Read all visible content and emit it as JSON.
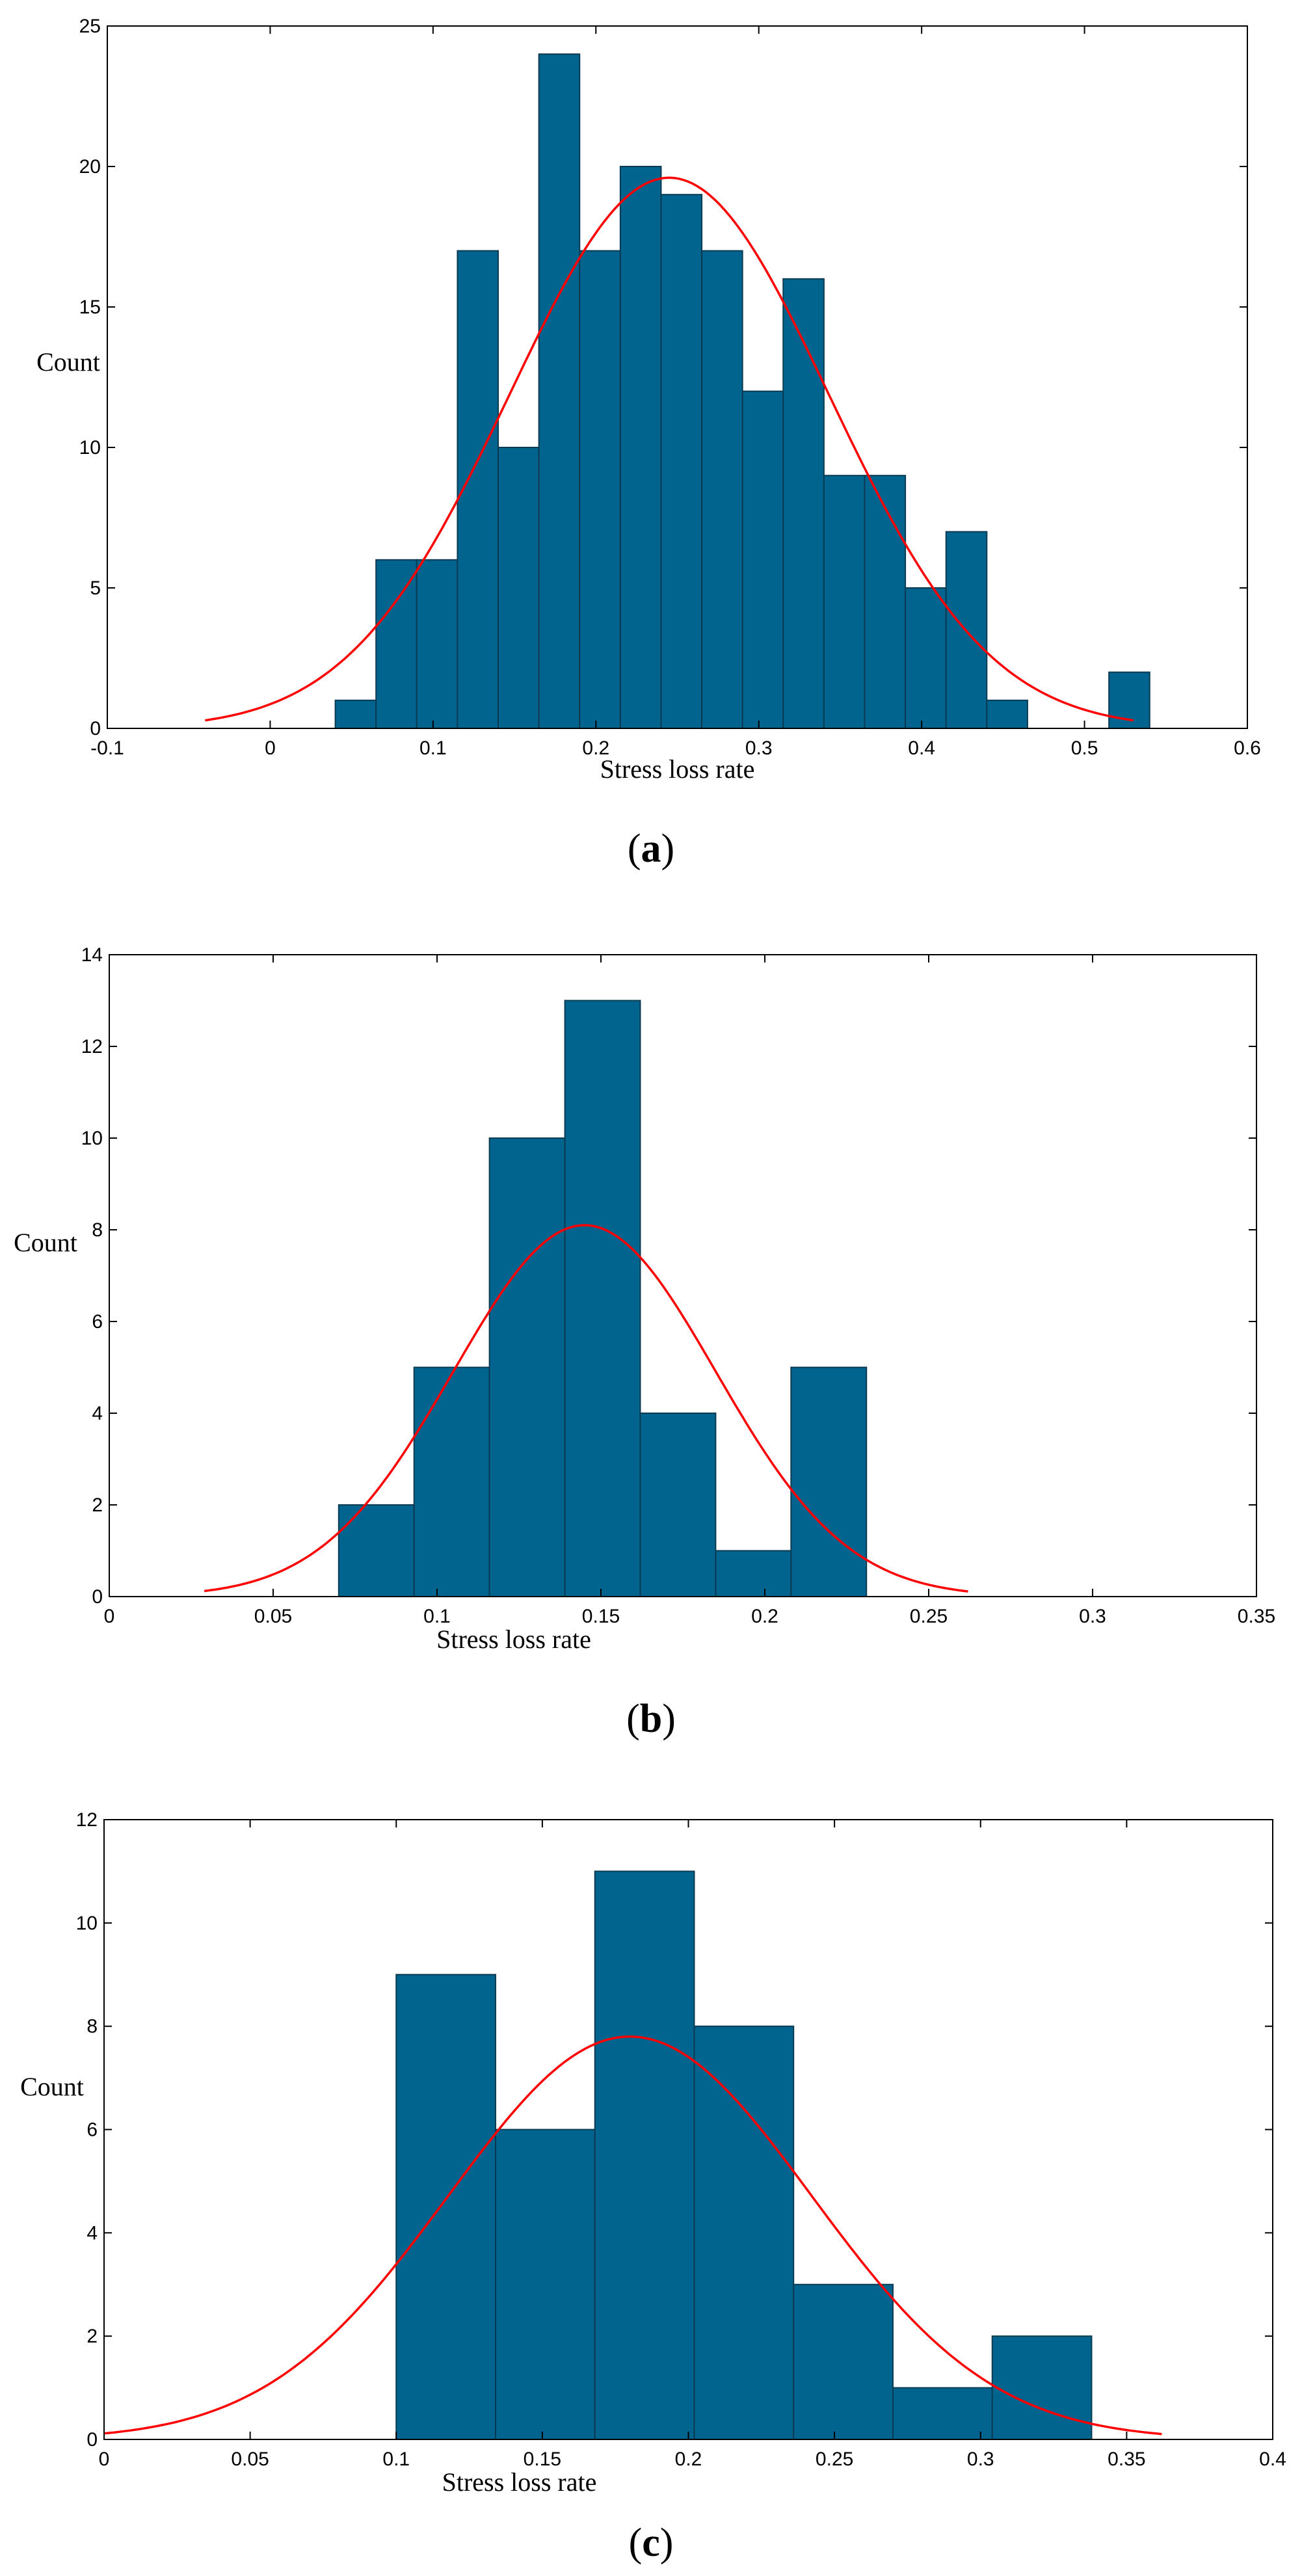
{
  "chart_data": [
    {
      "type": "histogram",
      "panel_label": "a",
      "xlabel": "Stress loss rate",
      "ylabel": "Count",
      "xlim": [
        -0.1,
        0.6
      ],
      "ylim": [
        0,
        25
      ],
      "xticks": [
        "-0.1",
        "0",
        "0.1",
        "0.2",
        "0.3",
        "0.4",
        "0.5",
        "0.6"
      ],
      "yticks": [
        "0",
        "5",
        "10",
        "15",
        "20",
        "25"
      ],
      "bin_width": 0.025,
      "bins": [
        {
          "x0": 0.04,
          "count": 1
        },
        {
          "x0": 0.065,
          "count": 6
        },
        {
          "x0": 0.09,
          "count": 6
        },
        {
          "x0": 0.115,
          "count": 17
        },
        {
          "x0": 0.14,
          "count": 10
        },
        {
          "x0": 0.165,
          "count": 24
        },
        {
          "x0": 0.19,
          "count": 17
        },
        {
          "x0": 0.215,
          "count": 20
        },
        {
          "x0": 0.24,
          "count": 19
        },
        {
          "x0": 0.265,
          "count": 17
        },
        {
          "x0": 0.29,
          "count": 12
        },
        {
          "x0": 0.315,
          "count": 16
        },
        {
          "x0": 0.34,
          "count": 9
        },
        {
          "x0": 0.365,
          "count": 9
        },
        {
          "x0": 0.39,
          "count": 5
        },
        {
          "x0": 0.415,
          "count": 7
        },
        {
          "x0": 0.44,
          "count": 1
        },
        {
          "x0": 0.465,
          "count": 0
        },
        {
          "x0": 0.49,
          "count": 0
        },
        {
          "x0": 0.515,
          "count": 2
        }
      ],
      "fit_curve": {
        "type": "normal",
        "mean": 0.245,
        "sd": 0.098,
        "peak": 19.6,
        "x_range": [
          -0.04,
          0.53
        ]
      },
      "bar_color": "#00648F",
      "curve_color": "#FF0000"
    },
    {
      "type": "histogram",
      "panel_label": "b",
      "xlabel": "Stress loss rate",
      "ylabel": "Count",
      "xlim": [
        0,
        0.35
      ],
      "ylim": [
        0,
        14
      ],
      "xticks": [
        "0",
        "0.05",
        "0.1",
        "0.15",
        "0.2",
        "0.25",
        "0.3",
        "0.35"
      ],
      "yticks": [
        "0",
        "2",
        "4",
        "6",
        "8",
        "10",
        "12",
        "14"
      ],
      "bin_width": 0.023,
      "bins": [
        {
          "x0": 0.07,
          "count": 2
        },
        {
          "x0": 0.093,
          "count": 5
        },
        {
          "x0": 0.116,
          "count": 10
        },
        {
          "x0": 0.139,
          "count": 13
        },
        {
          "x0": 0.162,
          "count": 4
        },
        {
          "x0": 0.185,
          "count": 1
        },
        {
          "x0": 0.208,
          "count": 5
        }
      ],
      "fit_curve": {
        "type": "normal",
        "mean": 0.145,
        "sd": 0.04,
        "peak": 8.1,
        "x_range": [
          0.029,
          0.262
        ]
      },
      "bar_color": "#00648F",
      "curve_color": "#FF0000"
    },
    {
      "type": "histogram",
      "panel_label": "c",
      "xlabel": "Stress loss rate",
      "ylabel": "Count",
      "xlim": [
        0,
        0.4
      ],
      "ylim": [
        0,
        12
      ],
      "xticks": [
        "0",
        "0.05",
        "0.1",
        "0.15",
        "0.2",
        "0.25",
        "0.3",
        "0.35",
        "0.4"
      ],
      "yticks": [
        "0",
        "2",
        "4",
        "6",
        "8",
        "10",
        "12"
      ],
      "bin_width": 0.034,
      "bins": [
        {
          "x0": 0.1,
          "count": 9
        },
        {
          "x0": 0.134,
          "count": 6
        },
        {
          "x0": 0.168,
          "count": 11
        },
        {
          "x0": 0.202,
          "count": 8
        },
        {
          "x0": 0.236,
          "count": 3
        },
        {
          "x0": 0.27,
          "count": 1
        },
        {
          "x0": 0.304,
          "count": 2
        }
      ],
      "fit_curve": {
        "type": "normal",
        "mean": 0.18,
        "sd": 0.062,
        "peak": 7.8,
        "x_range": [
          0.0,
          0.362
        ]
      },
      "bar_color": "#00648F",
      "curve_color": "#FF0000"
    }
  ]
}
